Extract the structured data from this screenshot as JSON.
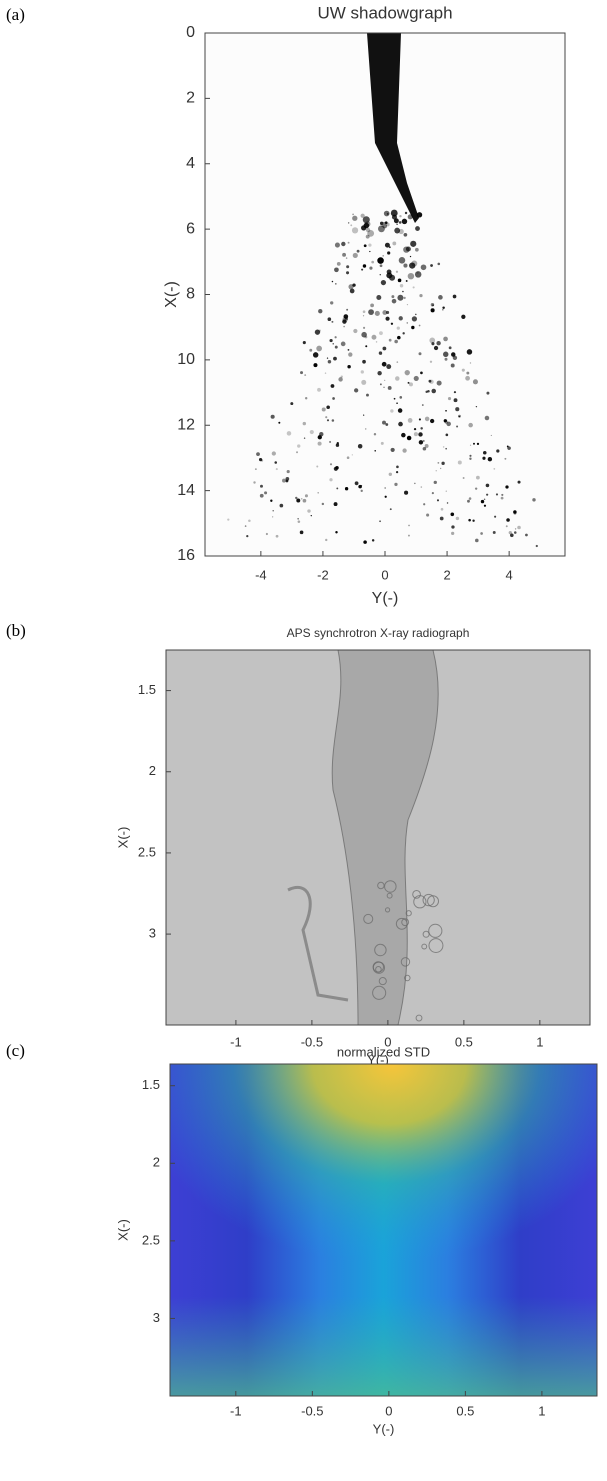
{
  "chart_data": [
    {
      "type": "image",
      "label": "(a)",
      "title": "UW shadowgraph",
      "x_label": "Y(-)",
      "y_label": "X(-)",
      "xlim": [
        -5.8,
        5.8
      ],
      "xticks": [
        -4,
        -2,
        0,
        2,
        4
      ],
      "ylim": [
        0,
        16
      ],
      "yticks": [
        0,
        2,
        4,
        6,
        8,
        10,
        12,
        14,
        16
      ],
      "y_inverted": true,
      "colormap": "shadow"
    },
    {
      "type": "image",
      "label": "(b)",
      "title": "APS synchrotron X-ray radiograph",
      "x_label": "Y(-)",
      "y_label": "X(-)",
      "xlim": [
        -1.46,
        1.33
      ],
      "xticks": [
        -1,
        -0.5,
        0,
        0.5,
        1
      ],
      "ylim": [
        1.25,
        3.56
      ],
      "yticks": [
        1.5,
        2,
        2.5,
        3
      ],
      "y_inverted": true,
      "colormap": "gray"
    },
    {
      "type": "image",
      "label": "(c)",
      "title": "normalized STD",
      "x_label": "Y(-)",
      "y_label": "X(-)",
      "xlim": [
        -1.43,
        1.36
      ],
      "xticks": [
        -1,
        -0.5,
        0,
        0.5,
        1
      ],
      "ylim": [
        1.36,
        3.5
      ],
      "yticks": [
        1.5,
        2,
        2.5,
        3
      ],
      "y_inverted": true,
      "colormap": "parula"
    }
  ]
}
